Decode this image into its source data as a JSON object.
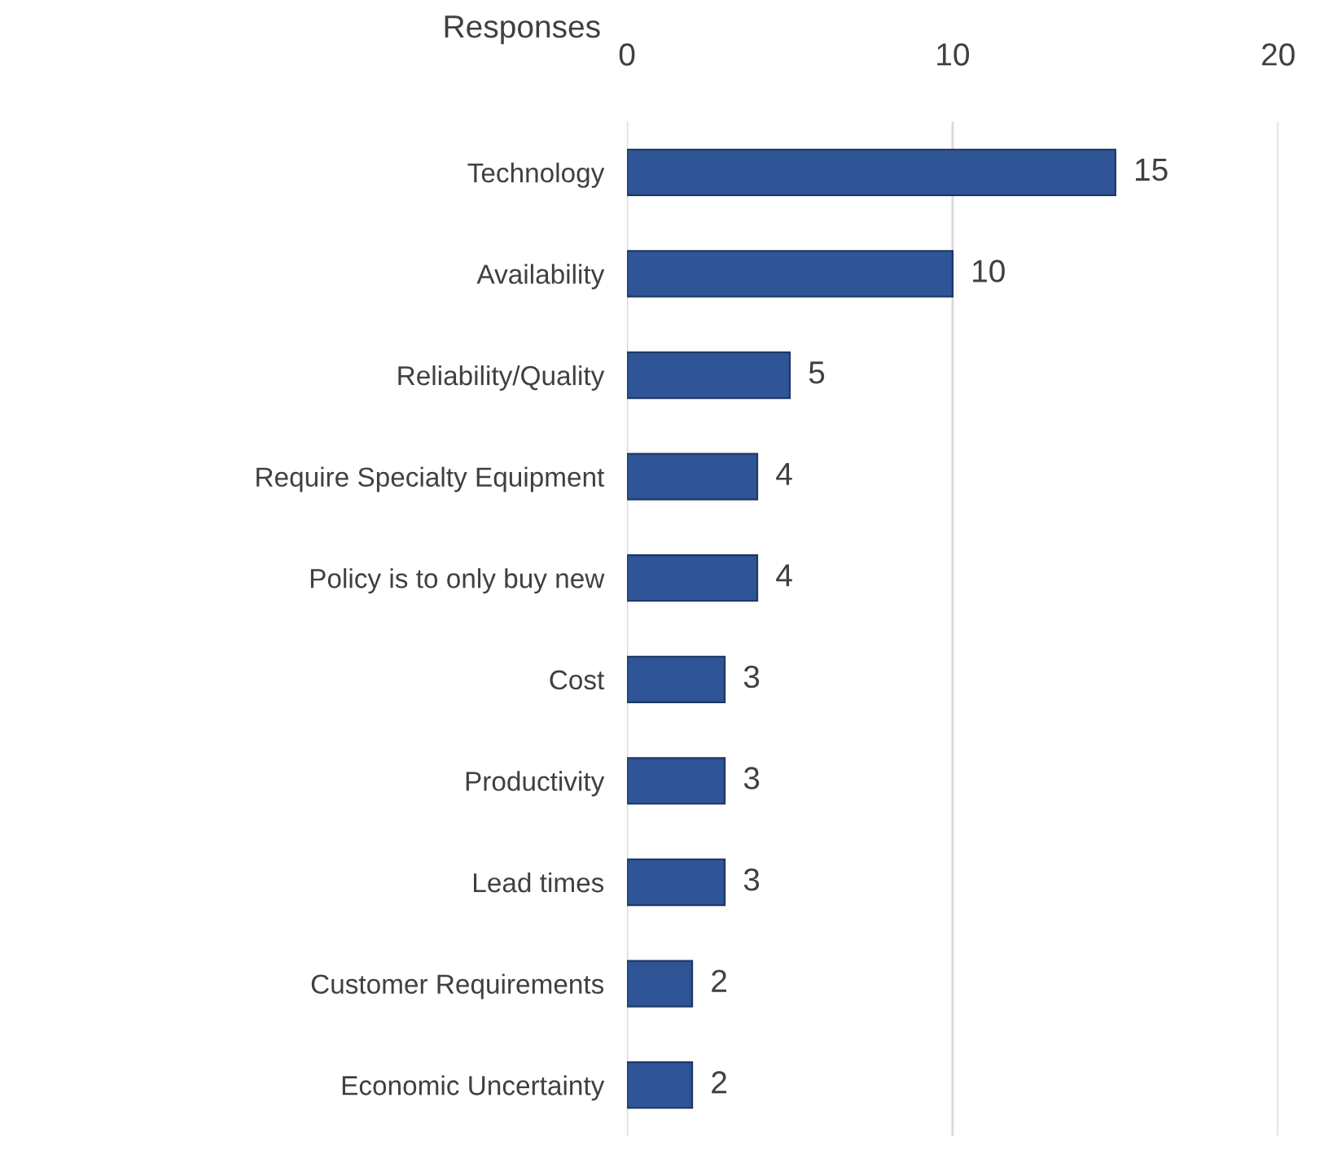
{
  "chart_data": {
    "type": "bar",
    "orientation": "horizontal",
    "xlabel": "Responses",
    "categories": [
      "Technology",
      "Availability",
      "Reliability/Quality",
      "Require Specialty Equipment",
      "Policy is to only buy new",
      "Cost",
      "Productivity",
      "Lead times",
      "Customer Requirements",
      "Economic Uncertainty"
    ],
    "values": [
      15,
      10,
      5,
      4,
      4,
      3,
      3,
      3,
      2,
      2
    ],
    "color": "#2f5597",
    "xlim": [
      0,
      20
    ],
    "xticks": [
      0,
      10,
      20
    ],
    "grid": "x",
    "data_labels": true
  }
}
